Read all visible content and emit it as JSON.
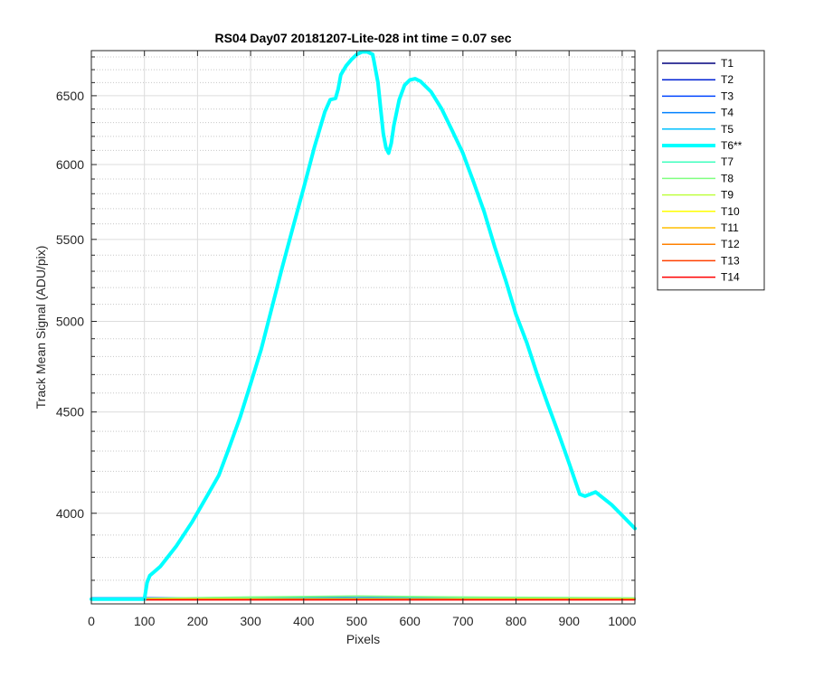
{
  "chart_data": {
    "type": "line",
    "title": "RS04 Day07 20181207-Lite-028 int time = 0.07 sec",
    "xlabel": "Pixels",
    "ylabel": "Track Mean Signal (ADU/pix)",
    "xlim": [
      0,
      1024
    ],
    "ylim": [
      3600,
      6850
    ],
    "y_scale": "log",
    "grid": true,
    "minor_grid": true,
    "legend_position": "outside-right",
    "x_ticks": [
      0,
      100,
      200,
      300,
      400,
      500,
      600,
      700,
      800,
      900,
      1000
    ],
    "y_ticks": [
      4000,
      4500,
      5000,
      5500,
      6000,
      6500
    ],
    "y_minor_ticks": [
      3700,
      3800,
      3900,
      4100,
      4200,
      4300,
      4400,
      4600,
      4700,
      4800,
      4900,
      5100,
      5200,
      5300,
      5400,
      5600,
      5700,
      5800,
      5900,
      6100,
      6200,
      6300,
      6400,
      6600,
      6700,
      6800
    ],
    "series": [
      {
        "name": "T1",
        "color": "#00007f",
        "width": 1.5,
        "x": [
          0,
          1024
        ],
        "y": [
          3625,
          3623
        ]
      },
      {
        "name": "T2",
        "color": "#0022d4",
        "width": 1.5,
        "x": [
          0,
          1024
        ],
        "y": [
          3624,
          3622
        ]
      },
      {
        "name": "T3",
        "color": "#0044ff",
        "width": 1.5,
        "x": [
          0,
          1024
        ],
        "y": [
          3626,
          3624
        ]
      },
      {
        "name": "T4",
        "color": "#0080ff",
        "width": 1.5,
        "x": [
          0,
          1024
        ],
        "y": [
          3622,
          3621
        ]
      },
      {
        "name": "T5",
        "color": "#00c0ff",
        "width": 1.5,
        "x": [
          0,
          1024
        ],
        "y": [
          3623,
          3622
        ]
      },
      {
        "name": "T6**",
        "color": "#00ffff",
        "width": 4,
        "x": [
          0,
          95,
          100,
          105,
          110,
          130,
          160,
          190,
          220,
          240,
          260,
          280,
          300,
          320,
          340,
          360,
          380,
          400,
          420,
          440,
          450,
          460,
          465,
          470,
          480,
          490,
          500,
          510,
          520,
          530,
          540,
          545,
          550,
          555,
          560,
          565,
          570,
          580,
          590,
          600,
          610,
          620,
          640,
          660,
          680,
          700,
          720,
          740,
          760,
          780,
          800,
          820,
          840,
          860,
          880,
          900,
          920,
          930,
          940,
          950,
          960,
          980,
          1000,
          1024
        ],
        "y": [
          3620,
          3620,
          3620,
          3690,
          3720,
          3760,
          3850,
          3960,
          4090,
          4180,
          4320,
          4470,
          4650,
          4840,
          5080,
          5330,
          5580,
          5840,
          6120,
          6380,
          6470,
          6480,
          6550,
          6660,
          6730,
          6780,
          6820,
          6840,
          6840,
          6820,
          6600,
          6400,
          6220,
          6120,
          6080,
          6150,
          6280,
          6470,
          6580,
          6620,
          6630,
          6610,
          6530,
          6400,
          6240,
          6080,
          5880,
          5680,
          5450,
          5250,
          5040,
          4880,
          4700,
          4540,
          4390,
          4240,
          4090,
          4080,
          4090,
          4100,
          4080,
          4040,
          3990,
          3930
        ]
      },
      {
        "name": "T7",
        "color": "#40ffbf",
        "width": 1.5,
        "x": [
          0,
          300,
          500,
          700,
          1024
        ],
        "y": [
          3620,
          3628,
          3632,
          3628,
          3624
        ]
      },
      {
        "name": "T8",
        "color": "#80ff80",
        "width": 1.5,
        "x": [
          0,
          300,
          500,
          700,
          1024
        ],
        "y": [
          3621,
          3629,
          3633,
          3629,
          3625
        ]
      },
      {
        "name": "T9",
        "color": "#bfff40",
        "width": 1.5,
        "x": [
          0,
          1024
        ],
        "y": [
          3622,
          3622
        ]
      },
      {
        "name": "T10",
        "color": "#ffff00",
        "width": 1.5,
        "x": [
          0,
          1024
        ],
        "y": [
          3620,
          3620
        ]
      },
      {
        "name": "T11",
        "color": "#ffbf00",
        "width": 1.5,
        "x": [
          0,
          1024
        ],
        "y": [
          3619,
          3619
        ]
      },
      {
        "name": "T12",
        "color": "#ff8000",
        "width": 1.5,
        "x": [
          0,
          1024
        ],
        "y": [
          3618,
          3618
        ]
      },
      {
        "name": "T13",
        "color": "#ff4000",
        "width": 1.5,
        "x": [
          0,
          1024
        ],
        "y": [
          3617,
          3617
        ]
      },
      {
        "name": "T14",
        "color": "#ff0000",
        "width": 1.5,
        "x": [
          0,
          1024
        ],
        "y": [
          3617,
          3617
        ]
      }
    ]
  }
}
